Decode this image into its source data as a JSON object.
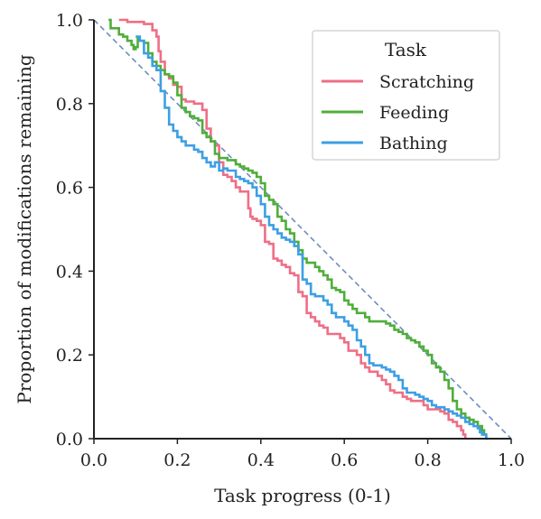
{
  "chart_data": {
    "type": "line",
    "title": "",
    "xlabel": "Task progress (0-1)",
    "ylabel": "Proportion of modifications remaining",
    "xlim": [
      0,
      1
    ],
    "ylim": [
      0,
      1
    ],
    "x_ticks": [
      "0.0",
      "0.2",
      "0.4",
      "0.6",
      "0.8",
      "1.0"
    ],
    "y_ticks": [
      "0.0",
      "0.2",
      "0.4",
      "0.6",
      "0.8",
      "1.0"
    ],
    "grid": false,
    "step": true,
    "legend": {
      "title": "Task",
      "position": "top-right"
    },
    "reference_line": {
      "points": [
        [
          0,
          1
        ],
        [
          1,
          0
        ]
      ],
      "style": "dashed",
      "color": "#6e8bbf"
    },
    "series": [
      {
        "name": "Scratching",
        "color": "#ee6f86",
        "points": [
          [
            0.06,
            1.0
          ],
          [
            0.08,
            0.995
          ],
          [
            0.12,
            0.99
          ],
          [
            0.14,
            0.98
          ],
          [
            0.14,
            0.975
          ],
          [
            0.15,
            0.965
          ],
          [
            0.15,
            0.96
          ],
          [
            0.155,
            0.95
          ],
          [
            0.155,
            0.94
          ],
          [
            0.155,
            0.925
          ],
          [
            0.16,
            0.92
          ],
          [
            0.16,
            0.9
          ],
          [
            0.17,
            0.88
          ],
          [
            0.17,
            0.87
          ],
          [
            0.18,
            0.86
          ],
          [
            0.19,
            0.855
          ],
          [
            0.19,
            0.845
          ],
          [
            0.2,
            0.84
          ],
          [
            0.21,
            0.825
          ],
          [
            0.21,
            0.81
          ],
          [
            0.22,
            0.805
          ],
          [
            0.23,
            0.805
          ],
          [
            0.24,
            0.8
          ],
          [
            0.25,
            0.8
          ],
          [
            0.26,
            0.795
          ],
          [
            0.26,
            0.785
          ],
          [
            0.27,
            0.78
          ],
          [
            0.27,
            0.74
          ],
          [
            0.28,
            0.73
          ],
          [
            0.28,
            0.71
          ],
          [
            0.29,
            0.7
          ],
          [
            0.3,
            0.68
          ],
          [
            0.3,
            0.66
          ],
          [
            0.31,
            0.655
          ],
          [
            0.31,
            0.63
          ],
          [
            0.32,
            0.625
          ],
          [
            0.33,
            0.62
          ],
          [
            0.33,
            0.615
          ],
          [
            0.34,
            0.6
          ],
          [
            0.35,
            0.59
          ],
          [
            0.36,
            0.59
          ],
          [
            0.37,
            0.57
          ],
          [
            0.37,
            0.55
          ],
          [
            0.375,
            0.53
          ],
          [
            0.38,
            0.525
          ],
          [
            0.39,
            0.52
          ],
          [
            0.4,
            0.51
          ],
          [
            0.41,
            0.49
          ],
          [
            0.41,
            0.47
          ],
          [
            0.42,
            0.465
          ],
          [
            0.43,
            0.43
          ],
          [
            0.44,
            0.425
          ],
          [
            0.45,
            0.415
          ],
          [
            0.46,
            0.41
          ],
          [
            0.47,
            0.395
          ],
          [
            0.48,
            0.39
          ],
          [
            0.49,
            0.38
          ],
          [
            0.49,
            0.35
          ],
          [
            0.5,
            0.34
          ],
          [
            0.51,
            0.32
          ],
          [
            0.51,
            0.3
          ],
          [
            0.52,
            0.29
          ],
          [
            0.53,
            0.28
          ],
          [
            0.54,
            0.27
          ],
          [
            0.55,
            0.265
          ],
          [
            0.56,
            0.25
          ],
          [
            0.58,
            0.25
          ],
          [
            0.59,
            0.24
          ],
          [
            0.6,
            0.23
          ],
          [
            0.61,
            0.22
          ],
          [
            0.61,
            0.21
          ],
          [
            0.62,
            0.21
          ],
          [
            0.63,
            0.2
          ],
          [
            0.64,
            0.18
          ],
          [
            0.65,
            0.17
          ],
          [
            0.66,
            0.16
          ],
          [
            0.67,
            0.16
          ],
          [
            0.67,
            0.16
          ],
          [
            0.68,
            0.15
          ],
          [
            0.69,
            0.14
          ],
          [
            0.7,
            0.13
          ],
          [
            0.71,
            0.115
          ],
          [
            0.72,
            0.11
          ],
          [
            0.74,
            0.1
          ],
          [
            0.75,
            0.095
          ],
          [
            0.76,
            0.09
          ],
          [
            0.78,
            0.09
          ],
          [
            0.79,
            0.08
          ],
          [
            0.8,
            0.07
          ],
          [
            0.82,
            0.07
          ],
          [
            0.83,
            0.065
          ],
          [
            0.84,
            0.06
          ],
          [
            0.85,
            0.05
          ],
          [
            0.85,
            0.045
          ],
          [
            0.86,
            0.04
          ],
          [
            0.87,
            0.03
          ],
          [
            0.88,
            0.02
          ],
          [
            0.885,
            0.01
          ],
          [
            0.89,
            0.0
          ]
        ]
      },
      {
        "name": "Feeding",
        "color": "#4fae3a",
        "points": [
          [
            0.035,
            1.0
          ],
          [
            0.04,
            0.98
          ],
          [
            0.06,
            0.965
          ],
          [
            0.07,
            0.96
          ],
          [
            0.08,
            0.95
          ],
          [
            0.09,
            0.94
          ],
          [
            0.095,
            0.93
          ],
          [
            0.1,
            0.935
          ],
          [
            0.105,
            0.955
          ],
          [
            0.11,
            0.95
          ],
          [
            0.12,
            0.945
          ],
          [
            0.13,
            0.94
          ],
          [
            0.13,
            0.92
          ],
          [
            0.14,
            0.91
          ],
          [
            0.14,
            0.9
          ],
          [
            0.15,
            0.89
          ],
          [
            0.16,
            0.88
          ],
          [
            0.17,
            0.87
          ],
          [
            0.18,
            0.865
          ],
          [
            0.19,
            0.86
          ],
          [
            0.19,
            0.85
          ],
          [
            0.2,
            0.84
          ],
          [
            0.2,
            0.82
          ],
          [
            0.21,
            0.81
          ],
          [
            0.21,
            0.79
          ],
          [
            0.22,
            0.78
          ],
          [
            0.23,
            0.77
          ],
          [
            0.24,
            0.765
          ],
          [
            0.25,
            0.76
          ],
          [
            0.26,
            0.73
          ],
          [
            0.27,
            0.72
          ],
          [
            0.28,
            0.71
          ],
          [
            0.29,
            0.7
          ],
          [
            0.29,
            0.68
          ],
          [
            0.3,
            0.67
          ],
          [
            0.32,
            0.665
          ],
          [
            0.34,
            0.655
          ],
          [
            0.35,
            0.65
          ],
          [
            0.36,
            0.645
          ],
          [
            0.37,
            0.64
          ],
          [
            0.38,
            0.635
          ],
          [
            0.39,
            0.625
          ],
          [
            0.4,
            0.61
          ],
          [
            0.41,
            0.58
          ],
          [
            0.42,
            0.57
          ],
          [
            0.43,
            0.56
          ],
          [
            0.44,
            0.55
          ],
          [
            0.44,
            0.53
          ],
          [
            0.45,
            0.52
          ],
          [
            0.46,
            0.5
          ],
          [
            0.47,
            0.49
          ],
          [
            0.48,
            0.47
          ],
          [
            0.49,
            0.45
          ],
          [
            0.5,
            0.43
          ],
          [
            0.51,
            0.42
          ],
          [
            0.53,
            0.41
          ],
          [
            0.54,
            0.4
          ],
          [
            0.55,
            0.39
          ],
          [
            0.56,
            0.38
          ],
          [
            0.57,
            0.36
          ],
          [
            0.58,
            0.355
          ],
          [
            0.59,
            0.35
          ],
          [
            0.6,
            0.33
          ],
          [
            0.61,
            0.32
          ],
          [
            0.62,
            0.31
          ],
          [
            0.63,
            0.3
          ],
          [
            0.65,
            0.29
          ],
          [
            0.66,
            0.28
          ],
          [
            0.68,
            0.28
          ],
          [
            0.7,
            0.275
          ],
          [
            0.71,
            0.27
          ],
          [
            0.72,
            0.26
          ],
          [
            0.73,
            0.255
          ],
          [
            0.74,
            0.25
          ],
          [
            0.75,
            0.24
          ],
          [
            0.76,
            0.235
          ],
          [
            0.77,
            0.23
          ],
          [
            0.78,
            0.22
          ],
          [
            0.79,
            0.21
          ],
          [
            0.8,
            0.2
          ],
          [
            0.81,
            0.18
          ],
          [
            0.82,
            0.175
          ],
          [
            0.82,
            0.17
          ],
          [
            0.83,
            0.16
          ],
          [
            0.84,
            0.14
          ],
          [
            0.85,
            0.12
          ],
          [
            0.86,
            0.09
          ],
          [
            0.87,
            0.07
          ],
          [
            0.88,
            0.06
          ],
          [
            0.89,
            0.05
          ],
          [
            0.9,
            0.045
          ],
          [
            0.91,
            0.04
          ],
          [
            0.92,
            0.03
          ],
          [
            0.93,
            0.02
          ],
          [
            0.935,
            0.01
          ],
          [
            0.94,
            0.0
          ]
        ]
      },
      {
        "name": "Bathing",
        "color": "#3d9fe3",
        "points": [
          [
            0.1,
            0.96
          ],
          [
            0.11,
            0.95
          ],
          [
            0.12,
            0.92
          ],
          [
            0.13,
            0.91
          ],
          [
            0.14,
            0.89
          ],
          [
            0.15,
            0.88
          ],
          [
            0.16,
            0.86
          ],
          [
            0.16,
            0.83
          ],
          [
            0.17,
            0.82
          ],
          [
            0.17,
            0.79
          ],
          [
            0.18,
            0.77
          ],
          [
            0.18,
            0.75
          ],
          [
            0.19,
            0.735
          ],
          [
            0.2,
            0.72
          ],
          [
            0.21,
            0.71
          ],
          [
            0.22,
            0.7
          ],
          [
            0.24,
            0.69
          ],
          [
            0.25,
            0.685
          ],
          [
            0.26,
            0.67
          ],
          [
            0.27,
            0.66
          ],
          [
            0.28,
            0.65
          ],
          [
            0.29,
            0.66
          ],
          [
            0.3,
            0.65
          ],
          [
            0.3,
            0.64
          ],
          [
            0.31,
            0.645
          ],
          [
            0.32,
            0.64
          ],
          [
            0.33,
            0.64
          ],
          [
            0.34,
            0.625
          ],
          [
            0.35,
            0.62
          ],
          [
            0.36,
            0.615
          ],
          [
            0.37,
            0.61
          ],
          [
            0.38,
            0.6
          ],
          [
            0.39,
            0.58
          ],
          [
            0.4,
            0.56
          ],
          [
            0.41,
            0.53
          ],
          [
            0.42,
            0.51
          ],
          [
            0.43,
            0.5
          ],
          [
            0.44,
            0.49
          ],
          [
            0.45,
            0.48
          ],
          [
            0.46,
            0.475
          ],
          [
            0.47,
            0.47
          ],
          [
            0.48,
            0.46
          ],
          [
            0.49,
            0.44
          ],
          [
            0.5,
            0.41
          ],
          [
            0.5,
            0.38
          ],
          [
            0.51,
            0.37
          ],
          [
            0.52,
            0.345
          ],
          [
            0.53,
            0.34
          ],
          [
            0.55,
            0.33
          ],
          [
            0.56,
            0.32
          ],
          [
            0.57,
            0.3
          ],
          [
            0.58,
            0.29
          ],
          [
            0.6,
            0.28
          ],
          [
            0.61,
            0.27
          ],
          [
            0.62,
            0.26
          ],
          [
            0.63,
            0.235
          ],
          [
            0.64,
            0.22
          ],
          [
            0.65,
            0.2
          ],
          [
            0.66,
            0.18
          ],
          [
            0.67,
            0.175
          ],
          [
            0.69,
            0.17
          ],
          [
            0.7,
            0.165
          ],
          [
            0.71,
            0.16
          ],
          [
            0.72,
            0.15
          ],
          [
            0.73,
            0.14
          ],
          [
            0.74,
            0.12
          ],
          [
            0.75,
            0.11
          ],
          [
            0.76,
            0.11
          ],
          [
            0.77,
            0.105
          ],
          [
            0.78,
            0.1
          ],
          [
            0.79,
            0.095
          ],
          [
            0.8,
            0.09
          ],
          [
            0.81,
            0.08
          ],
          [
            0.82,
            0.075
          ],
          [
            0.83,
            0.075
          ],
          [
            0.84,
            0.07
          ],
          [
            0.85,
            0.065
          ],
          [
            0.86,
            0.06
          ],
          [
            0.87,
            0.055
          ],
          [
            0.88,
            0.05
          ],
          [
            0.89,
            0.04
          ],
          [
            0.9,
            0.035
          ],
          [
            0.91,
            0.03
          ],
          [
            0.92,
            0.025
          ],
          [
            0.925,
            0.015
          ],
          [
            0.93,
            0.01
          ],
          [
            0.94,
            0.0
          ],
          [
            0.945,
            0.0
          ]
        ]
      }
    ]
  }
}
